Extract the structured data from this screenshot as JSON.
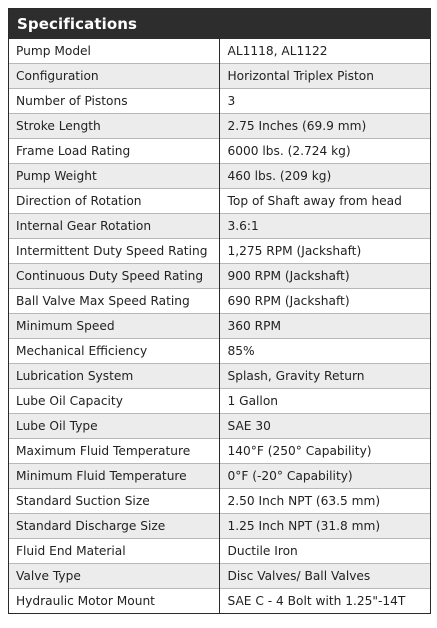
{
  "header": {
    "title": "Specifications"
  },
  "colors": {
    "header_background": "#2d2d2d",
    "header_text": "#ffffff",
    "stripe_background": "#ececec",
    "border": "#2a2a2a",
    "text": "#222222"
  },
  "specs": [
    {
      "label": "Pump Model",
      "value": "AL1118, AL1122"
    },
    {
      "label": "Configuration",
      "value": "Horizontal Triplex Piston"
    },
    {
      "label": "Number of Pistons",
      "value": "3"
    },
    {
      "label": "Stroke Length",
      "value": "2.75 Inches (69.9 mm)"
    },
    {
      "label": "Frame Load Rating",
      "value": "6000 lbs. (2.724 kg)"
    },
    {
      "label": "Pump Weight",
      "value": "460 lbs. (209 kg)"
    },
    {
      "label": "Direction of Rotation",
      "value": "Top of Shaft away from head"
    },
    {
      "label": "Internal Gear Rotation",
      "value": "3.6:1"
    },
    {
      "label": "Intermittent Duty Speed Rating",
      "value": "1,275 RPM (Jackshaft)"
    },
    {
      "label": "Continuous Duty Speed Rating",
      "value": "900 RPM (Jackshaft)"
    },
    {
      "label": "Ball Valve Max Speed Rating",
      "value": "690 RPM (Jackshaft)"
    },
    {
      "label": "Minimum Speed",
      "value": "360 RPM"
    },
    {
      "label": "Mechanical Efficiency",
      "value": "85%"
    },
    {
      "label": "Lubrication System",
      "value": "Splash, Gravity Return"
    },
    {
      "label": "Lube Oil Capacity",
      "value": "1 Gallon"
    },
    {
      "label": "Lube Oil Type",
      "value": "SAE 30"
    },
    {
      "label": "Maximum Fluid Temperature",
      "value": "140°F (250° Capability)"
    },
    {
      "label": "Minimum Fluid Temperature",
      "value": "0°F (-20° Capability)"
    },
    {
      "label": "Standard Suction Size",
      "value": "2.50 Inch NPT (63.5 mm)"
    },
    {
      "label": "Standard Discharge Size",
      "value": "1.25 Inch NPT (31.8 mm)"
    },
    {
      "label": "Fluid End Material",
      "value": "Ductile Iron"
    },
    {
      "label": "Valve Type",
      "value": "Disc Valves/ Ball Valves"
    },
    {
      "label": "Hydraulic Motor Mount",
      "value": "SAE C - 4 Bolt with 1.25\"-14T"
    }
  ]
}
